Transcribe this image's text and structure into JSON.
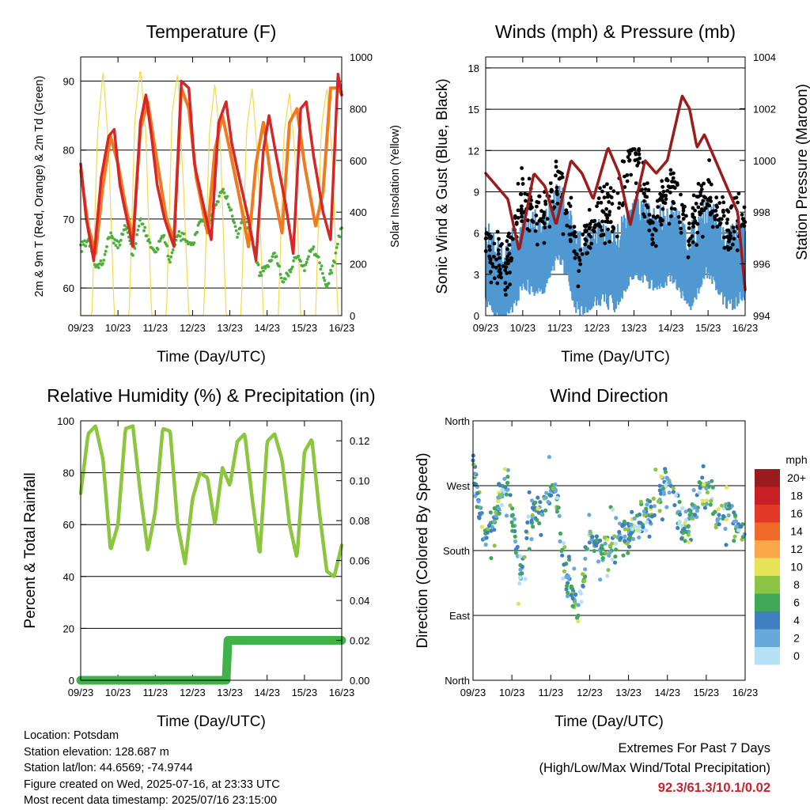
{
  "colors": {
    "temp_red": "#d62728",
    "temp_orange": "#f07a20",
    "dewpoint_green": "#4daf3c",
    "solar_yellow": "#f5d94a",
    "wind_blue": "#4f98d2",
    "gust_black": "#000000",
    "pressure_maroon": "#9c1b1b",
    "rh_green": "#8cc63f",
    "precip_green": "#3fb24a",
    "extremes_red": "#c4262c"
  },
  "chart_data": [
    {
      "id": "temperature",
      "type": "line",
      "title": "Temperature (F)",
      "xlabel": "Time (Day/UTC)",
      "ylabel": "2m & 9m T (Red, Orange) & 2m Td (Green)",
      "ylabel_right": "Solar Insolation (Yellow)",
      "x_ticks": [
        "09/23",
        "10/23",
        "11/23",
        "12/23",
        "13/23",
        "14/23",
        "15/23",
        "16/23"
      ],
      "ylim": [
        56,
        93.5
      ],
      "y_ticks": [
        60,
        70,
        80,
        90
      ],
      "ylim_right": [
        0,
        1000
      ],
      "y_ticks_right": [
        0,
        200,
        400,
        600,
        800,
        1000
      ],
      "grid": "horizontal",
      "series": [
        {
          "key": "t2m",
          "style": "line",
          "x": [
            0,
            0.15,
            0.35,
            0.55,
            0.75,
            0.9,
            1.05,
            1.2,
            1.4,
            1.6,
            1.75,
            1.9,
            2.05,
            2.25,
            2.5,
            2.7,
            2.9,
            3.05,
            3.25,
            3.5,
            3.7,
            3.9,
            4.05,
            4.25,
            4.5,
            4.7,
            4.9,
            5.05,
            5.25,
            5.5,
            5.7,
            5.9,
            6.05,
            6.25,
            6.5,
            6.7,
            6.9,
            7.0
          ],
          "values": [
            78,
            70,
            64,
            76,
            82,
            83,
            75,
            71,
            66,
            84,
            88,
            82,
            75,
            70,
            66,
            90,
            89,
            78,
            73,
            67,
            84,
            87,
            81,
            76,
            70,
            64,
            80,
            85,
            79,
            72,
            65,
            86,
            87,
            79,
            71,
            67,
            91,
            88
          ]
        },
        {
          "key": "t9m",
          "style": "line",
          "x": [
            0,
            0.2,
            0.4,
            0.6,
            0.8,
            1.0,
            1.2,
            1.4,
            1.6,
            1.8,
            2.0,
            2.3,
            2.5,
            2.7,
            2.9,
            3.1,
            3.4,
            3.6,
            3.8,
            4.0,
            4.3,
            4.5,
            4.7,
            4.9,
            5.1,
            5.4,
            5.6,
            5.8,
            6.0,
            6.3,
            6.5,
            6.7,
            6.9,
            7.0
          ],
          "values": [
            77,
            69,
            65,
            75,
            82,
            78,
            72,
            67,
            83,
            87,
            80,
            70,
            67,
            89,
            86,
            76,
            68,
            80,
            85,
            80,
            72,
            66,
            78,
            84,
            76,
            68,
            84,
            86,
            78,
            69,
            74,
            89,
            89,
            88
          ]
        },
        {
          "key": "td2m",
          "style": "points",
          "x": [
            0,
            0.2,
            0.4,
            0.6,
            0.8,
            1.0,
            1.2,
            1.4,
            1.6,
            1.8,
            2.0,
            2.2,
            2.4,
            2.6,
            2.8,
            3.0,
            3.2,
            3.4,
            3.6,
            3.8,
            4.0,
            4.2,
            4.4,
            4.6,
            4.8,
            5.0,
            5.2,
            5.4,
            5.6,
            5.8,
            6.0,
            6.2,
            6.4,
            6.6,
            6.8,
            7.0
          ],
          "values": [
            66,
            67,
            63,
            64,
            68,
            66,
            69,
            65,
            70,
            67,
            65,
            68,
            64,
            68,
            67,
            66,
            70,
            69,
            72,
            74,
            72,
            68,
            70,
            67,
            62,
            63,
            65,
            61,
            62,
            65,
            63,
            66,
            64,
            60,
            64,
            69
          ]
        },
        {
          "key": "solar",
          "style": "line",
          "axis": "right",
          "x": [
            0,
            0.3,
            0.45,
            0.6,
            0.75,
            0.9,
            1.3,
            1.45,
            1.6,
            1.75,
            1.9,
            2.3,
            2.45,
            2.6,
            2.75,
            2.9,
            3.3,
            3.45,
            3.6,
            3.75,
            3.9,
            4.3,
            4.45,
            4.6,
            4.75,
            4.9,
            5.3,
            5.45,
            5.6,
            5.75,
            5.9,
            6.3,
            6.45,
            6.6,
            6.75,
            6.9,
            7.0
          ],
          "values": [
            0,
            0,
            700,
            950,
            650,
            0,
            0,
            750,
            960,
            700,
            0,
            0,
            780,
            940,
            520,
            0,
            0,
            700,
            900,
            650,
            0,
            0,
            720,
            880,
            600,
            0,
            0,
            700,
            860,
            620,
            0,
            0,
            720,
            880,
            600,
            0,
            0
          ]
        }
      ]
    },
    {
      "id": "winds",
      "type": "line",
      "title": "Winds (mph) & Pressure (mb)",
      "xlabel": "Time (Day/UTC)",
      "ylabel": "Sonic Wind & Gust (Blue, Black)",
      "ylabel_right": "Station Pressure (Maroon)",
      "x_ticks": [
        "09/23",
        "10/23",
        "11/23",
        "12/23",
        "13/23",
        "14/23",
        "15/23",
        "16/23"
      ],
      "ylim": [
        0,
        18.8
      ],
      "y_ticks": [
        0,
        3,
        6,
        9,
        12,
        15,
        18
      ],
      "ylim_right": [
        994,
        1004
      ],
      "y_ticks_right": [
        994,
        996,
        998,
        1000,
        1002,
        1004
      ],
      "grid": "horizontal",
      "series": [
        {
          "key": "wind",
          "style": "band",
          "x": [
            0,
            0.5,
            1.0,
            1.5,
            2.0,
            2.5,
            3.0,
            3.5,
            4.0,
            4.5,
            5.0,
            5.5,
            6.0,
            6.5,
            7.0
          ],
          "values": [
            3.5,
            1.5,
            4.5,
            4,
            6.5,
            2.5,
            3.5,
            3,
            5.5,
            4.5,
            5,
            3,
            5.5,
            3,
            3.5
          ]
        },
        {
          "key": "gust",
          "style": "points",
          "x": [
            0,
            0.5,
            1.0,
            1.5,
            2.0,
            2.5,
            3.0,
            3.5,
            4.0,
            4.5,
            5.0,
            5.5,
            6.0,
            6.5,
            7.0
          ],
          "values": [
            5.5,
            3,
            8.5,
            7,
            9.5,
            4,
            7,
            7.5,
            12,
            6.5,
            9.5,
            6,
            9,
            6,
            7
          ]
        },
        {
          "key": "pressure",
          "style": "line",
          "axis": "right",
          "x": [
            0,
            0.3,
            0.6,
            0.9,
            1.3,
            1.6,
            1.9,
            2.3,
            2.6,
            2.9,
            3.3,
            3.6,
            3.9,
            4.3,
            4.6,
            4.9,
            5.3,
            5.5,
            5.7,
            5.9,
            6.2,
            6.5,
            6.8,
            7.0
          ],
          "values": [
            999.5,
            999.0,
            998.5,
            996.5,
            999.5,
            999.0,
            997.5,
            1000.0,
            999.5,
            998.5,
            1000.5,
            999.5,
            997.5,
            1000.0,
            999.5,
            1000.0,
            1002.5,
            1002.0,
            1000.5,
            1001.0,
            1000.0,
            999.0,
            998.0,
            995.0
          ]
        }
      ]
    },
    {
      "id": "humidity",
      "type": "line",
      "title": "Relative Humidity (%) & Precipitation (in)",
      "xlabel": "Time (Day/UTC)",
      "ylabel": "Percent & Total Rainfall",
      "x_ticks": [
        "09/23",
        "10/23",
        "11/23",
        "12/23",
        "13/23",
        "14/23",
        "15/23",
        "16/23"
      ],
      "ylim": [
        0,
        100
      ],
      "y_ticks": [
        0,
        20,
        40,
        60,
        80,
        100
      ],
      "ylim_right": [
        0,
        0.13
      ],
      "y_ticks_right": [
        0.0,
        0.02,
        0.04,
        0.06,
        0.08,
        0.1,
        0.12
      ],
      "grid": "horizontal",
      "series": [
        {
          "key": "rh",
          "style": "line",
          "x": [
            0,
            0.2,
            0.4,
            0.6,
            0.8,
            1.0,
            1.2,
            1.4,
            1.6,
            1.8,
            2.0,
            2.2,
            2.4,
            2.6,
            2.8,
            3.0,
            3.2,
            3.4,
            3.6,
            3.8,
            4.0,
            4.2,
            4.4,
            4.6,
            4.8,
            5.0,
            5.2,
            5.4,
            5.6,
            5.8,
            6.0,
            6.2,
            6.4,
            6.6,
            6.8,
            7.0
          ],
          "values": [
            72,
            95,
            98,
            85,
            50,
            60,
            97,
            98,
            72,
            50,
            65,
            97,
            96,
            60,
            45,
            70,
            80,
            78,
            60,
            82,
            75,
            92,
            95,
            70,
            48,
            92,
            95,
            85,
            60,
            47,
            88,
            93,
            65,
            42,
            40,
            52
          ]
        },
        {
          "key": "precip",
          "style": "step",
          "axis": "right",
          "x": [
            0,
            3.9,
            3.95,
            7.0
          ],
          "values": [
            0.0,
            0.0,
            0.02,
            0.02
          ]
        }
      ]
    },
    {
      "id": "direction",
      "type": "scatter",
      "title": "Wind Direction",
      "xlabel": "Time (Day/UTC)",
      "ylabel": "Direction (Colored By Speed)",
      "x_ticks": [
        "09/23",
        "10/23",
        "11/23",
        "12/23",
        "13/23",
        "14/23",
        "15/23",
        "16/23"
      ],
      "y_ticks": [
        "North",
        "East",
        "South",
        "West",
        "North"
      ],
      "ylim": [
        0,
        360
      ],
      "grid": "horizontal",
      "legend_title": "mph",
      "legend": [
        "20+",
        "18",
        "16",
        "14",
        "12",
        "10",
        "8",
        "6",
        "4",
        "2",
        "0"
      ],
      "legend_colors": [
        "#9a1b1e",
        "#c81f26",
        "#e23a27",
        "#f06a2a",
        "#f9a84a",
        "#e6e359",
        "#8cc543",
        "#41a85a",
        "#3e7fc1",
        "#68a9dc",
        "#b6e0f6"
      ],
      "x": [
        0,
        0.3,
        0.6,
        0.9,
        1.2,
        1.5,
        1.8,
        2.1,
        2.4,
        2.7,
        3.0,
        3.3,
        3.6,
        3.9,
        4.2,
        4.5,
        4.8,
        5.1,
        5.4,
        5.7,
        6.0,
        6.3,
        6.6,
        6.9
      ],
      "values": [
        300,
        190,
        230,
        280,
        150,
        230,
        240,
        270,
        150,
        90,
        200,
        180,
        190,
        200,
        210,
        230,
        260,
        280,
        200,
        240,
        270,
        220,
        240,
        200
      ]
    }
  ],
  "info": {
    "location": "Location: Potsdam",
    "elevation": "Station elevation: 128.687 m",
    "latlon": "Station lat/lon: 44.6569; -74.9744",
    "created": "Figure created on Wed, 2025-07-16, at 23:33 UTC",
    "recent": "Most recent data timestamp: 2025/07/16 23:15:00"
  },
  "extremes": {
    "line1": "Extremes For Past 7 Days",
    "line2": "(High/Low/Max Wind/Total Precipitation)",
    "values": "92.3/61.3/10.1/0.02"
  }
}
